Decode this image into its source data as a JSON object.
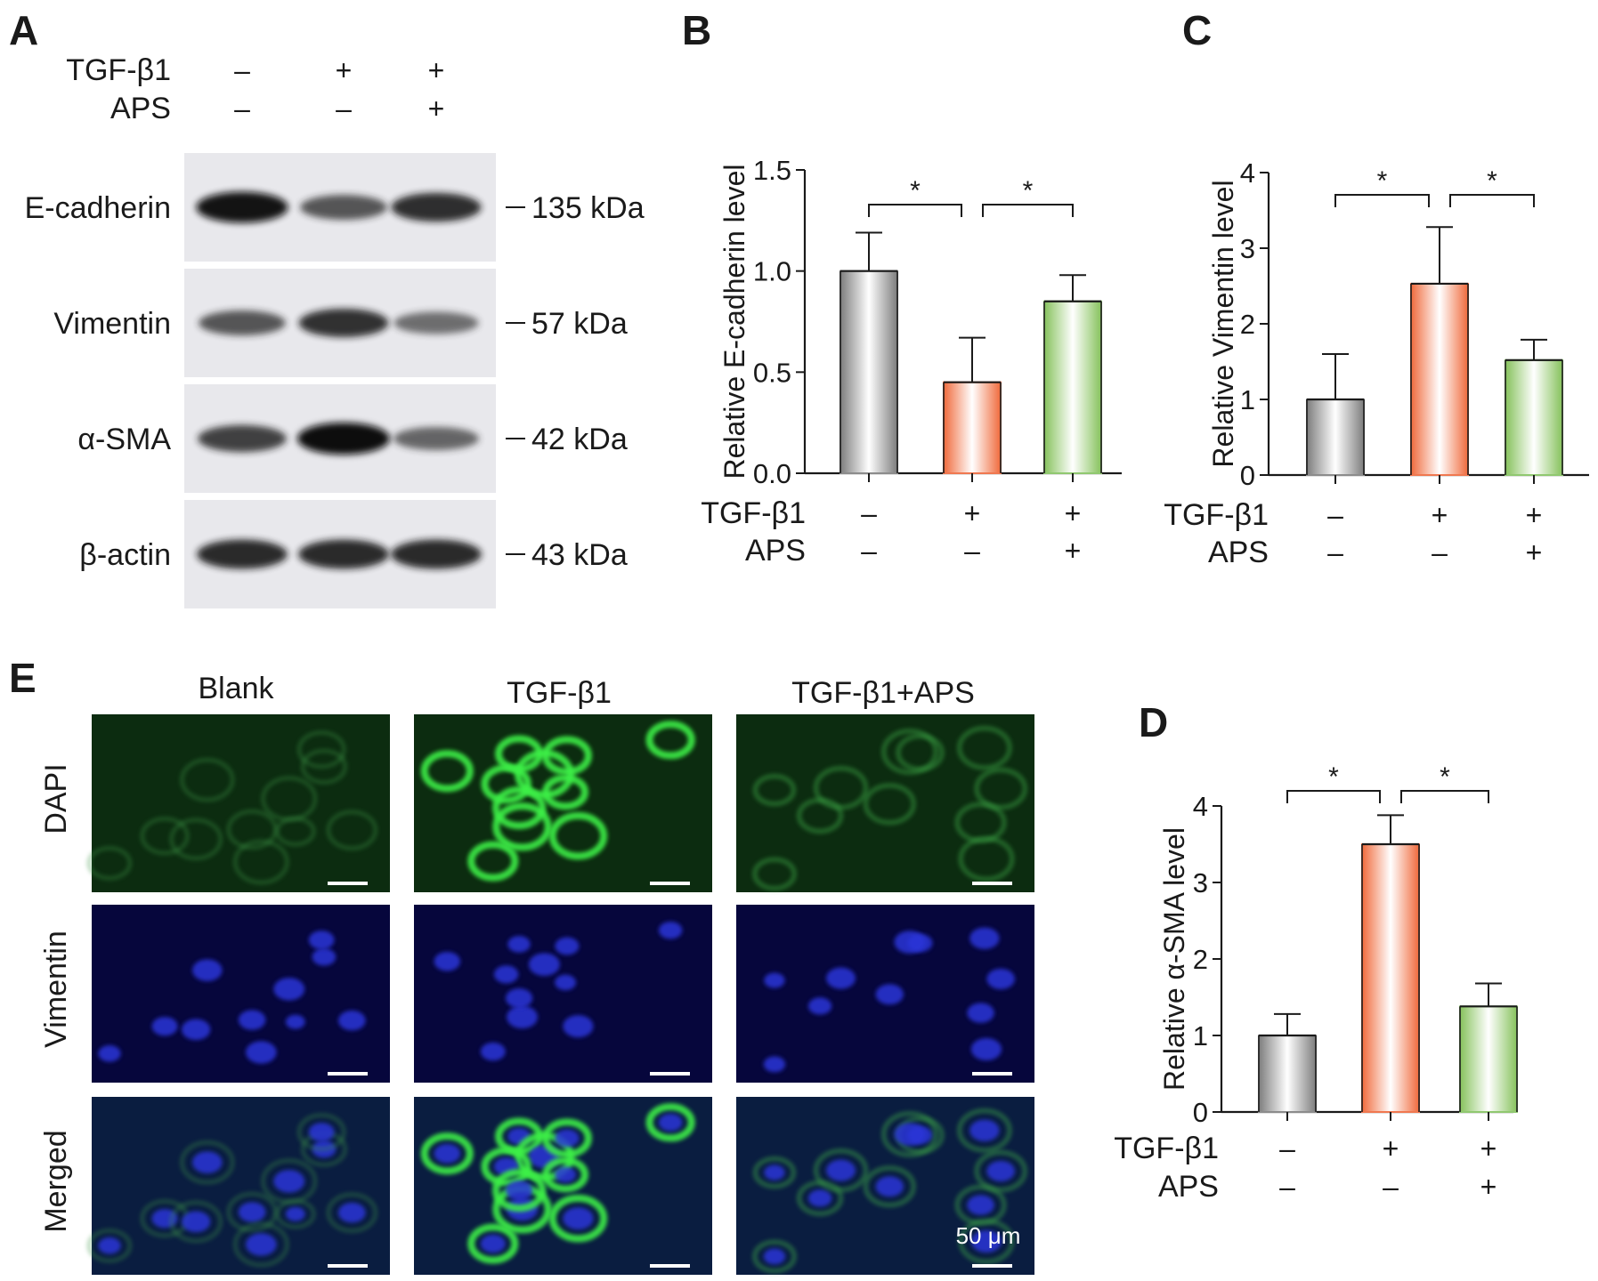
{
  "panel_a": {
    "letter": "A",
    "treatment_rows": [
      {
        "label": "TGF-β1",
        "signs": [
          "–",
          "+",
          "+"
        ]
      },
      {
        "label": "APS",
        "signs": [
          "–",
          "–",
          "+"
        ]
      }
    ],
    "blots": [
      {
        "protein": "E-cadherin",
        "marker": "135 kDa",
        "intensity": [
          0.95,
          0.6,
          0.82
        ]
      },
      {
        "protein": "Vimentin",
        "marker": "57 kDa",
        "intensity": [
          0.6,
          0.8,
          0.45
        ]
      },
      {
        "protein": "α-SMA",
        "marker": "42 kDa",
        "intensity": [
          0.72,
          1.0,
          0.5
        ]
      },
      {
        "protein": "β-actin",
        "marker": "43 kDa",
        "intensity": [
          0.85,
          0.85,
          0.85
        ]
      }
    ]
  },
  "panel_e": {
    "letter": "E",
    "columns": [
      "Blank",
      "TGF-β1",
      "TGF-β1+APS"
    ],
    "rows": [
      "DAPI",
      "Vimentin",
      "Merged"
    ],
    "scale_bar_label": "50 μm",
    "green_intensity": [
      0.25,
      1.0,
      0.4
    ]
  },
  "bar_colors": {
    "control": "#8c8c8c",
    "tgf": "#f07850",
    "tgf_aps": "#90c870"
  },
  "chart_data": [
    {
      "id": "B",
      "type": "bar",
      "letter": "B",
      "ylabel": "Relative E-cadherin level",
      "ylim": [
        0,
        1.5
      ],
      "yticks": [
        "0.0",
        "0.5",
        "1.0",
        "1.5"
      ],
      "ytick_values": [
        0,
        0.5,
        1.0,
        1.5
      ],
      "values": [
        1.0,
        0.45,
        0.85
      ],
      "errors": [
        0.19,
        0.22,
        0.13
      ],
      "significance": [
        {
          "from": 0,
          "to": 1,
          "label": "*"
        },
        {
          "from": 1,
          "to": 2,
          "label": "*"
        }
      ],
      "treatment_rows": [
        {
          "label": "TGF-β1",
          "signs": [
            "–",
            "+",
            "+"
          ]
        },
        {
          "label": "APS",
          "signs": [
            "–",
            "–",
            "+"
          ]
        }
      ]
    },
    {
      "id": "C",
      "type": "bar",
      "letter": "C",
      "ylabel": "Relative Vimentin level",
      "ylim": [
        0,
        4
      ],
      "yticks": [
        "0",
        "1",
        "2",
        "3",
        "4"
      ],
      "ytick_values": [
        0,
        1,
        2,
        3,
        4
      ],
      "values": [
        1.0,
        2.53,
        1.52
      ],
      "errors": [
        0.6,
        0.75,
        0.27
      ],
      "significance": [
        {
          "from": 0,
          "to": 1,
          "label": "*"
        },
        {
          "from": 1,
          "to": 2,
          "label": "*"
        }
      ],
      "treatment_rows": [
        {
          "label": "TGF-β1",
          "signs": [
            "–",
            "+",
            "+"
          ]
        },
        {
          "label": "APS",
          "signs": [
            "–",
            "–",
            "+"
          ]
        }
      ]
    },
    {
      "id": "D",
      "type": "bar",
      "letter": "D",
      "ylabel": "Relative α-SMA level",
      "ylim": [
        0,
        4
      ],
      "yticks": [
        "0",
        "1",
        "2",
        "3",
        "4"
      ],
      "ytick_values": [
        0,
        1,
        2,
        3,
        4
      ],
      "values": [
        1.0,
        3.5,
        1.38
      ],
      "errors": [
        0.28,
        0.38,
        0.3
      ],
      "significance": [
        {
          "from": 0,
          "to": 1,
          "label": "*"
        },
        {
          "from": 1,
          "to": 2,
          "label": "*"
        }
      ],
      "treatment_rows": [
        {
          "label": "TGF-β1",
          "signs": [
            "–",
            "+",
            "+"
          ]
        },
        {
          "label": "APS",
          "signs": [
            "–",
            "–",
            "+"
          ]
        }
      ]
    }
  ]
}
